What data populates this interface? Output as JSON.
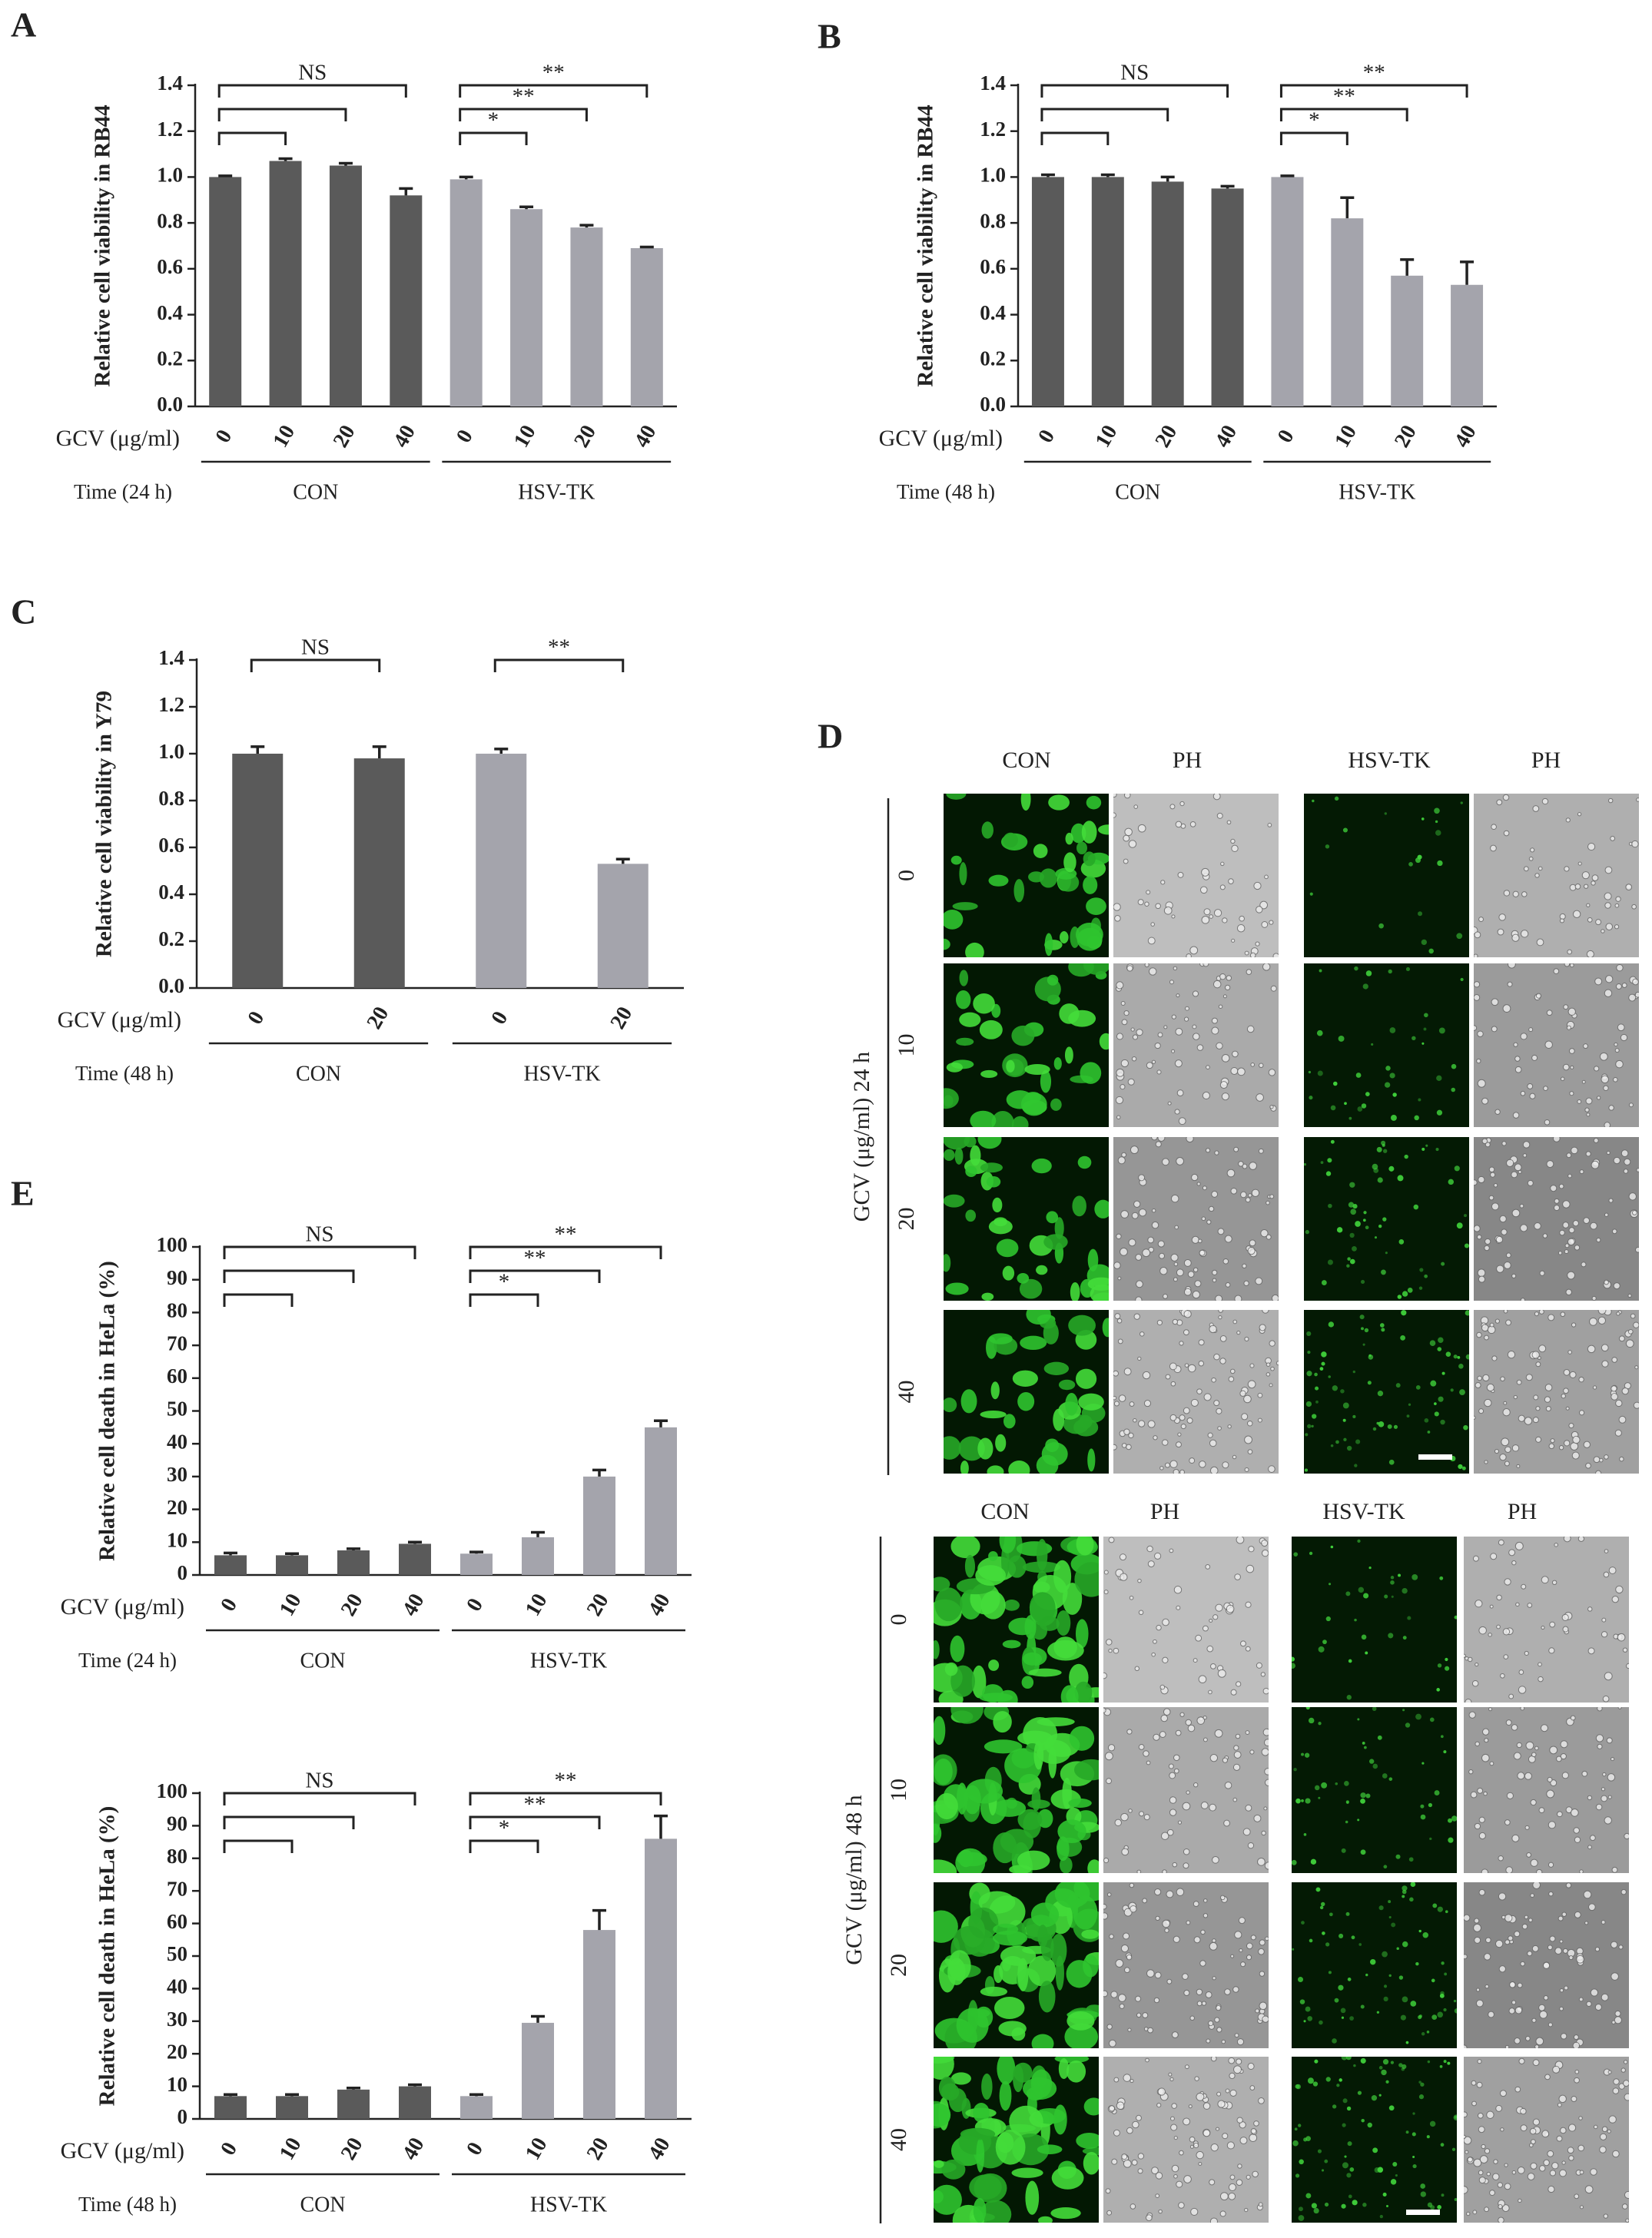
{
  "chart_data": [
    {
      "type": "bar",
      "panel": "A",
      "ylabel": "Relative cell viability in RB44",
      "xlabel": "GCV (μg/ml)",
      "time_label": "Time (24 h)",
      "groups": [
        "CON",
        "HSV-TK"
      ],
      "categories": [
        "0",
        "10",
        "20",
        "40",
        "0",
        "10",
        "20",
        "40"
      ],
      "values": [
        1.0,
        1.07,
        1.05,
        0.92,
        0.99,
        0.86,
        0.78,
        0.69
      ],
      "errors": [
        0.005,
        0.01,
        0.01,
        0.03,
        0.01,
        0.01,
        0.01,
        0.005
      ],
      "colors": [
        "#5a5a5a",
        "#a4a4ac"
      ],
      "ylim": [
        0,
        1.4
      ],
      "yticks": [
        {
          "value": 0,
          "label": "0.0"
        },
        0.2,
        0.4,
        0.6,
        0.8,
        {
          "value": 1,
          "label": "1.0"
        },
        1.2,
        1.4
      ],
      "significance": [
        [
          "NS"
        ],
        [
          "*",
          "**",
          "**"
        ]
      ]
    },
    {
      "type": "bar",
      "panel": "B",
      "ylabel": "Relative cell viability in RB44",
      "xlabel": "GCV (μg/ml)",
      "time_label": "Time (48 h)",
      "groups": [
        "CON",
        "HSV-TK"
      ],
      "categories": [
        "0",
        "10",
        "20",
        "40",
        "0",
        "10",
        "20",
        "40"
      ],
      "values": [
        1.0,
        1.0,
        0.98,
        0.95,
        1.0,
        0.82,
        0.57,
        0.53
      ],
      "errors": [
        0.01,
        0.01,
        0.02,
        0.01,
        0.005,
        0.09,
        0.07,
        0.1
      ],
      "colors": [
        "#5a5a5a",
        "#a4a4ac"
      ],
      "ylim": [
        0,
        1.4
      ],
      "yticks": [
        {
          "value": 0,
          "label": "0.0"
        },
        0.2,
        0.4,
        0.6,
        0.8,
        {
          "value": 1,
          "label": "1.0"
        },
        1.2,
        1.4
      ],
      "significance": [
        [
          "NS"
        ],
        [
          "*",
          "**",
          "**"
        ]
      ]
    },
    {
      "type": "bar",
      "panel": "C",
      "ylabel": "Relative cell viability  in Y79",
      "xlabel": "GCV (μg/ml)",
      "time_label": "Time (48 h)",
      "groups": [
        "CON",
        "HSV-TK"
      ],
      "categories": [
        "0",
        "20",
        "0",
        "20"
      ],
      "values": [
        1.0,
        0.98,
        1.0,
        0.53
      ],
      "errors": [
        0.03,
        0.05,
        0.02,
        0.02
      ],
      "colors": [
        "#5a5a5a",
        "#a4a4ac"
      ],
      "ylim": [
        0,
        1.4
      ],
      "yticks": [
        {
          "value": 0,
          "label": "0.0"
        },
        0.2,
        0.4,
        0.6,
        0.8,
        {
          "value": 1,
          "label": "1.0"
        },
        1.2,
        1.4
      ],
      "significance": [
        [
          "NS"
        ],
        [
          "**"
        ]
      ]
    },
    {
      "type": "bar",
      "panel": "E",
      "ylabel": "Relative cell death in HeLa (%)",
      "xlabel": "GCV (μg/ml)",
      "time_label": "Time (24 h)",
      "groups": [
        "CON",
        "HSV-TK"
      ],
      "categories": [
        "0",
        "10",
        "20",
        "40",
        "0",
        "10",
        "20",
        "40"
      ],
      "values": [
        6,
        6,
        7.5,
        9.5,
        6.5,
        11.5,
        30,
        45
      ],
      "errors": [
        0.7,
        0.5,
        0.5,
        0.5,
        0.5,
        1.5,
        2,
        2
      ],
      "colors": [
        "#5a5a5a",
        "#a4a4ac"
      ],
      "ylim": [
        0,
        100
      ],
      "yticks": [
        0,
        10,
        20,
        30,
        40,
        50,
        60,
        70,
        80,
        90,
        100
      ],
      "significance": [
        [
          "NS"
        ],
        [
          "*",
          "**",
          "**"
        ]
      ]
    },
    {
      "type": "bar",
      "ylabel": "Relative cell death in HeLa (%)",
      "xlabel": "GCV (μg/ml)",
      "time_label": "Time (48 h)",
      "groups": [
        "CON",
        "HSV-TK"
      ],
      "categories": [
        "0",
        "10",
        "20",
        "40",
        "0",
        "10",
        "20",
        "40"
      ],
      "values": [
        7,
        7,
        9,
        10,
        7,
        29.5,
        58,
        86
      ],
      "errors": [
        0.5,
        0.5,
        0.5,
        0.5,
        0.5,
        2,
        6,
        7
      ],
      "colors": [
        "#5a5a5a",
        "#a4a4ac"
      ],
      "ylim": [
        0,
        100
      ],
      "yticks": [
        0,
        10,
        20,
        30,
        40,
        50,
        60,
        70,
        80,
        90,
        100
      ],
      "significance": [
        [
          "NS"
        ],
        [
          "*",
          "**",
          "**"
        ]
      ]
    }
  ],
  "panel_d": {
    "label": "D",
    "blocks": [
      {
        "headers": [
          "CON",
          "PH",
          "HSV-TK",
          "PH"
        ],
        "ylabel": "GCV (μg/ml) 24 h",
        "rows": [
          "0",
          "10",
          "20",
          "40"
        ]
      },
      {
        "headers": [
          "CON",
          "PH",
          "HSV-TK",
          "PH"
        ],
        "ylabel": "GCV (μg/ml) 48 h",
        "rows": [
          "0",
          "10",
          "20",
          "40"
        ]
      }
    ]
  }
}
